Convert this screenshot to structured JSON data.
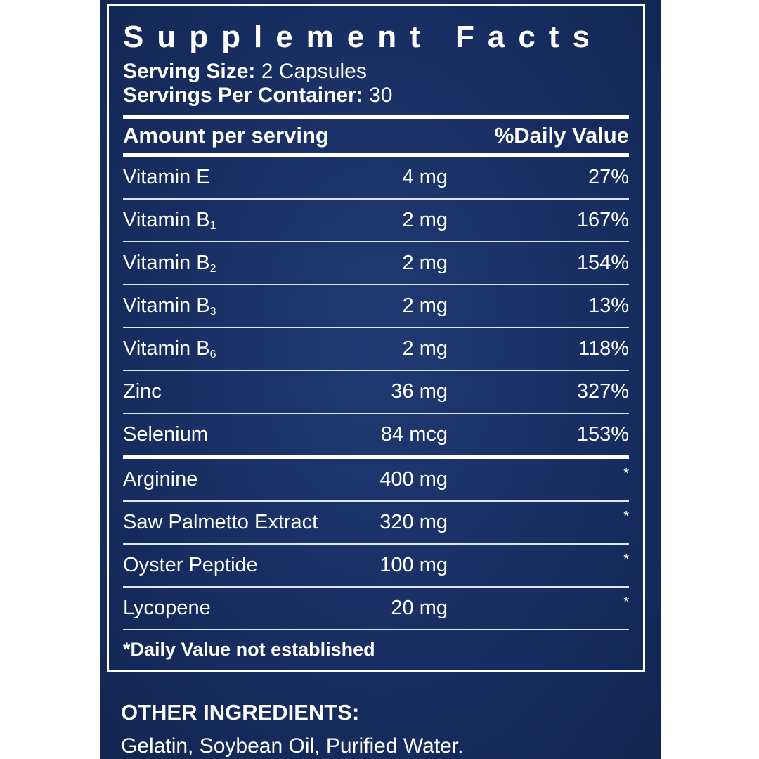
{
  "panel": {
    "title": "Supplement Facts",
    "serving_size_label": "Serving Size:",
    "serving_size_value": "2 Capsules",
    "servings_per_label": "Servings Per Container:",
    "servings_per_value": "30",
    "amount_header": "Amount per serving",
    "dv_header": "%Daily Value",
    "vitamin_rows": [
      {
        "name": "Vitamin E",
        "sub": "",
        "amount": "4 mg",
        "dv": "27%"
      },
      {
        "name": "Vitamin B",
        "sub": "1",
        "amount": "2 mg",
        "dv": "167%"
      },
      {
        "name": "Vitamin B",
        "sub": "2",
        "amount": "2 mg",
        "dv": "154%"
      },
      {
        "name": "Vitamin B",
        "sub": "3",
        "amount": "2 mg",
        "dv": "13%"
      },
      {
        "name": "Vitamin B",
        "sub": "6",
        "amount": "2 mg",
        "dv": "118%"
      },
      {
        "name": "Zinc",
        "sub": "",
        "amount": "36 mg",
        "dv": "327%"
      },
      {
        "name": "Selenium",
        "sub": "",
        "amount": "84 mcg",
        "dv": "153%"
      }
    ],
    "other_rows": [
      {
        "name": "Arginine",
        "amount": "400 mg",
        "dv": "*"
      },
      {
        "name": "Saw Palmetto Extract",
        "amount": "320 mg",
        "dv": "*"
      },
      {
        "name": "Oyster Peptide",
        "amount": "100 mg",
        "dv": "*"
      },
      {
        "name": "Lycopene",
        "amount": "20 mg",
        "dv": "*"
      }
    ],
    "footnote": "*Daily Value not established"
  },
  "other_ingredients": {
    "heading": "OTHER INGREDIENTS:",
    "list": "Gelatin, Soybean Oil, Purified Water."
  },
  "colors": {
    "label_background": "#1a3066",
    "text": "#ffffff"
  }
}
